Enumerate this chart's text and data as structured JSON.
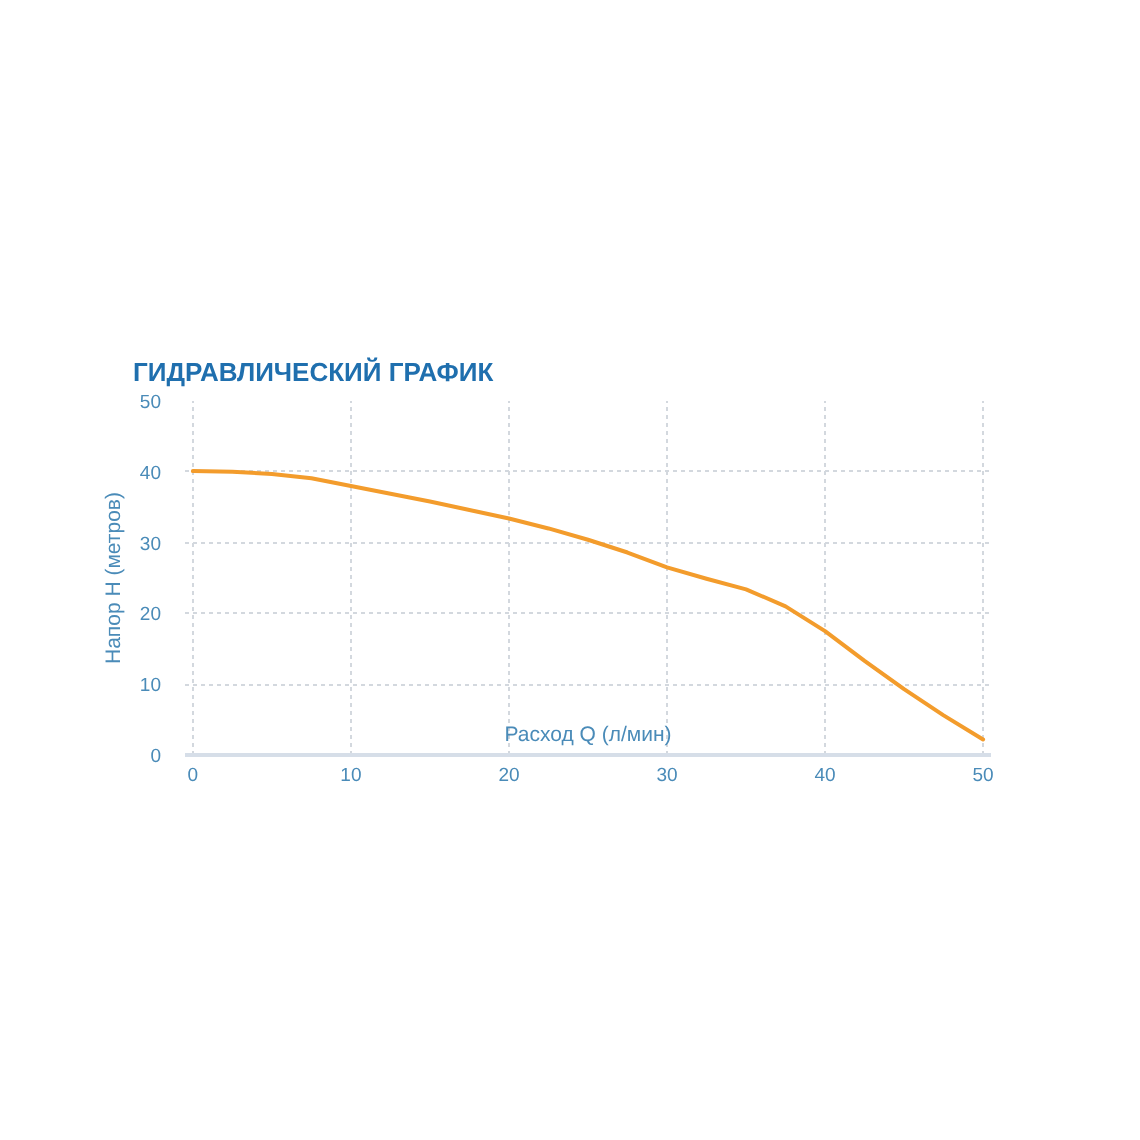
{
  "chart_data": {
    "type": "line",
    "title": "ГИДРАВЛИЧЕСКИЙ ГРАФИК",
    "xlabel": "Расход Q (л/мин)",
    "ylabel": "Напор H (метров)",
    "x": [
      0,
      2.5,
      5,
      7.5,
      10,
      12.5,
      15,
      17.5,
      20,
      22.5,
      25,
      27.5,
      30,
      32.5,
      35,
      37.5,
      40,
      42.5,
      45,
      47.5,
      50
    ],
    "series": [
      {
        "color": "#f39c2c",
        "values": [
          40.1,
          40.0,
          39.7,
          39.1,
          38.0,
          36.9,
          35.8,
          34.6,
          33.4,
          32.0,
          30.4,
          28.6,
          26.5,
          24.9,
          23.4,
          21.0,
          17.5,
          13.3,
          9.3,
          5.6,
          2.2
        ]
      }
    ],
    "xlim": [
      -0.5,
      50.5
    ],
    "ylim": [
      0,
      50
    ],
    "xticks": [
      0,
      10,
      20,
      30,
      40,
      50
    ],
    "yticks": [
      0,
      10,
      20,
      30,
      40,
      50
    ],
    "grid": true,
    "line_style": "solid"
  }
}
